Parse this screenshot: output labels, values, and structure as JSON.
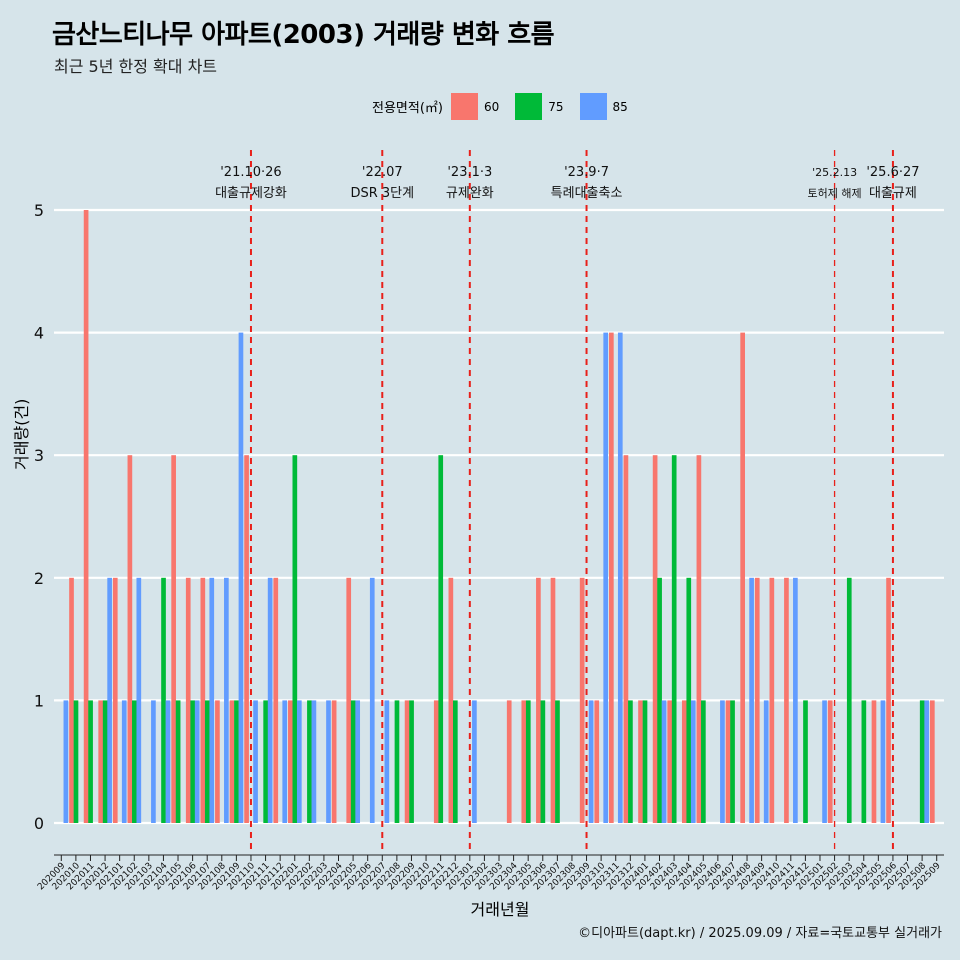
{
  "header": {
    "title": "금산느티나무 아파트(2003) 거래량 변화 흐름",
    "subtitle": "최근 5년 한정 확대 차트"
  },
  "legend": {
    "title": "전용면적(㎡)",
    "items": [
      {
        "label": "60",
        "color": "#F8766D"
      },
      {
        "label": "75",
        "color": "#00BA38"
      },
      {
        "label": "85",
        "color": "#619CFF"
      }
    ]
  },
  "caption": "©디아파트(dapt.kr) / 2025.09.09 / 자료=국토교통부 실거래가",
  "chart_data": {
    "type": "bar",
    "title": "금산느티나무 아파트(2003) 거래량 변화 흐름",
    "subtitle": "최근 5년 한정 확대 차트",
    "xlabel": "거래년월",
    "ylabel": "거래량(건)",
    "ylim": [
      0,
      5
    ],
    "yticks": [
      0,
      1,
      2,
      3,
      4,
      5
    ],
    "grid": "horizontal",
    "legend_position": "top",
    "categories": [
      "202009",
      "202010",
      "202011",
      "202012",
      "202101",
      "202102",
      "202103",
      "202104",
      "202105",
      "202106",
      "202107",
      "202108",
      "202109",
      "202110",
      "202111",
      "202112",
      "202201",
      "202202",
      "202203",
      "202204",
      "202205",
      "202206",
      "202207",
      "202208",
      "202209",
      "202210",
      "202211",
      "202212",
      "202301",
      "202302",
      "202303",
      "202304",
      "202305",
      "202306",
      "202307",
      "202308",
      "202309",
      "202310",
      "202311",
      "202312",
      "202401",
      "202402",
      "202403",
      "202404",
      "202405",
      "202406",
      "202407",
      "202408",
      "202409",
      "202410",
      "202411",
      "202412",
      "202501",
      "202502",
      "202503",
      "202504",
      "202505",
      "202506",
      "202507",
      "202508",
      "202509"
    ],
    "series": [
      {
        "name": "60",
        "color": "#F8766D",
        "values": [
          0,
          2,
          5,
          1,
          2,
          3,
          0,
          0,
          3,
          2,
          2,
          1,
          1,
          3,
          0,
          2,
          1,
          0,
          0,
          1,
          2,
          0,
          0,
          0,
          1,
          0,
          1,
          2,
          0,
          0,
          0,
          1,
          1,
          2,
          2,
          0,
          2,
          1,
          4,
          3,
          1,
          3,
          1,
          1,
          3,
          0,
          1,
          4,
          2,
          2,
          2,
          0,
          0,
          1,
          0,
          0,
          1,
          2,
          0,
          0,
          1
        ]
      },
      {
        "name": "75",
        "color": "#00BA38",
        "values": [
          0,
          1,
          1,
          1,
          0,
          1,
          0,
          2,
          1,
          1,
          1,
          0,
          1,
          0,
          1,
          0,
          3,
          1,
          0,
          0,
          1,
          0,
          0,
          1,
          1,
          0,
          3,
          1,
          0,
          0,
          0,
          0,
          1,
          1,
          1,
          0,
          0,
          0,
          0,
          1,
          1,
          2,
          3,
          2,
          1,
          0,
          1,
          0,
          0,
          0,
          0,
          1,
          0,
          0,
          2,
          1,
          0,
          0,
          0,
          1,
          0
        ]
      },
      {
        "name": "85",
        "color": "#619CFF",
        "values": [
          1,
          0,
          0,
          2,
          1,
          2,
          1,
          1,
          0,
          1,
          2,
          2,
          4,
          1,
          2,
          1,
          1,
          1,
          1,
          0,
          1,
          2,
          1,
          0,
          0,
          0,
          0,
          0,
          1,
          0,
          0,
          0,
          0,
          0,
          0,
          0,
          1,
          4,
          4,
          0,
          0,
          1,
          0,
          1,
          0,
          1,
          0,
          2,
          1,
          0,
          2,
          0,
          1,
          0,
          0,
          0,
          1,
          0,
          0,
          1,
          0
        ]
      }
    ],
    "annotations": [
      {
        "month": "202110",
        "date": "'21.10·26",
        "label": "대출규제강화"
      },
      {
        "month": "202207",
        "date": "'22.07",
        "label": "DSR 3단계"
      },
      {
        "month": "202301",
        "date": "'23.1·3",
        "label": "규제완화"
      },
      {
        "month": "202309",
        "date": "'23.9·7",
        "label": "특례대출축소"
      },
      {
        "month": "202502",
        "date": "'25.2.13",
        "label": "토허제 해제"
      },
      {
        "month": "202506",
        "date": "'25.6·27",
        "label": "대출규제"
      }
    ]
  }
}
